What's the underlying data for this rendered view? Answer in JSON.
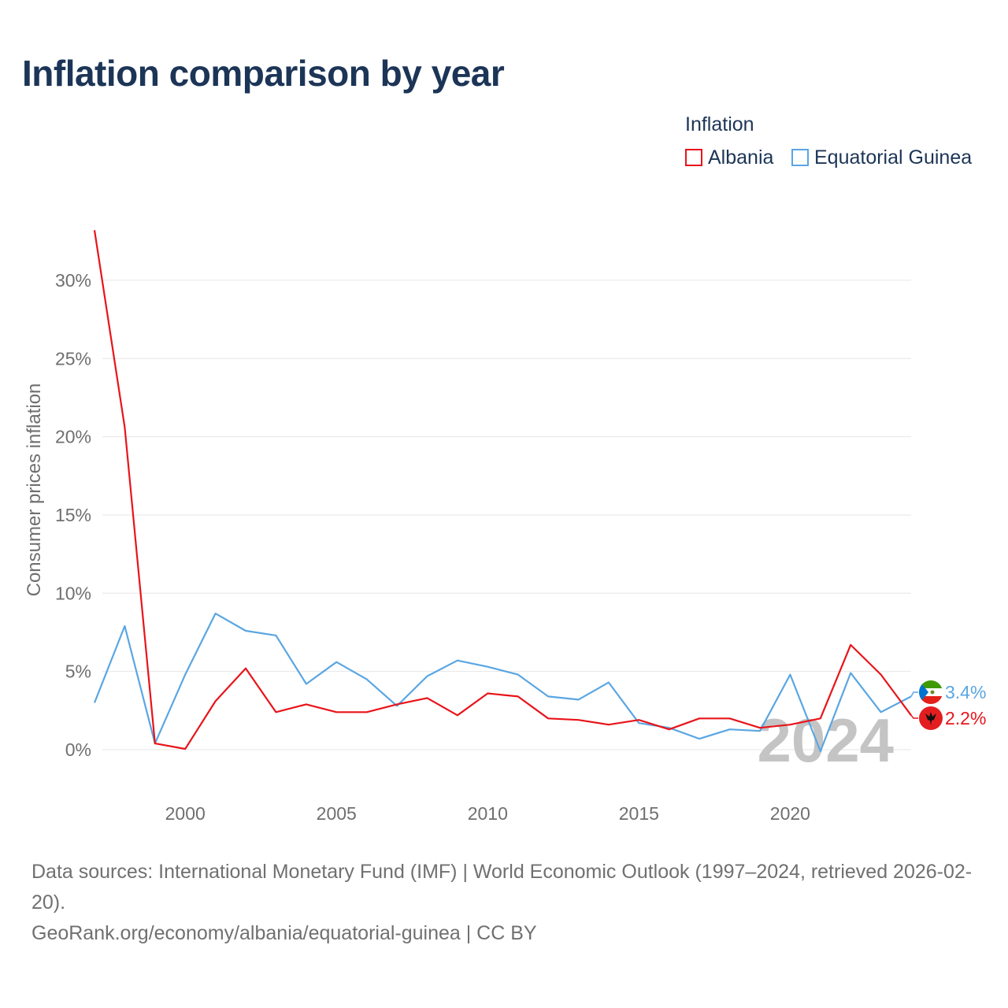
{
  "title": "Inflation comparison by year",
  "legend": {
    "title": "Inflation",
    "items": [
      {
        "label": "Albania",
        "color": "#e8141a"
      },
      {
        "label": "Equatorial Guinea",
        "color": "#5aa6e2"
      }
    ]
  },
  "footer": {
    "sources": "Data sources: International Monetary Fund (IMF) | World Economic Outlook (1997–2024, retrieved 2026-02-20).",
    "credit": "GeoRank.org/economy/albania/equatorial-guinea | CC BY"
  },
  "chart_data": {
    "type": "line",
    "title": "Inflation comparison by year",
    "xlabel": "",
    "ylabel": "Consumer prices inflation",
    "xlim": [
      1997,
      2024
    ],
    "ylim": [
      -3,
      33
    ],
    "grid": true,
    "legend_position": "top-right",
    "watermark": "2024",
    "x_ticks": [
      2000,
      2005,
      2010,
      2015,
      2020
    ],
    "y_ticks": [
      0,
      5,
      10,
      15,
      20,
      25,
      30
    ],
    "y_tick_labels": [
      "0%",
      "5%",
      "10%",
      "15%",
      "20%",
      "25%",
      "30%"
    ],
    "x": [
      1997,
      1998,
      1999,
      2000,
      2001,
      2002,
      2003,
      2004,
      2005,
      2006,
      2007,
      2008,
      2009,
      2010,
      2011,
      2012,
      2013,
      2014,
      2015,
      2016,
      2017,
      2018,
      2019,
      2020,
      2021,
      2022,
      2023,
      2024
    ],
    "series": [
      {
        "name": "Albania",
        "color": "#e8141a",
        "end_label": "2.2%",
        "values": [
          33.2,
          20.6,
          0.4,
          0.05,
          3.1,
          5.2,
          2.4,
          2.9,
          2.4,
          2.4,
          2.9,
          3.3,
          2.2,
          3.6,
          3.4,
          2.0,
          1.9,
          1.6,
          1.9,
          1.3,
          2.0,
          2.0,
          1.4,
          1.6,
          2.0,
          6.7,
          4.8,
          2.2
        ]
      },
      {
        "name": "Equatorial Guinea",
        "color": "#5aa6e2",
        "end_label": "3.4%",
        "values": [
          3.0,
          7.9,
          0.4,
          4.8,
          8.7,
          7.6,
          7.3,
          4.2,
          5.6,
          4.5,
          2.8,
          4.7,
          5.7,
          5.3,
          4.8,
          3.4,
          3.2,
          4.3,
          1.7,
          1.4,
          0.7,
          1.3,
          1.2,
          4.8,
          -0.1,
          4.9,
          2.4,
          3.4
        ]
      }
    ]
  }
}
